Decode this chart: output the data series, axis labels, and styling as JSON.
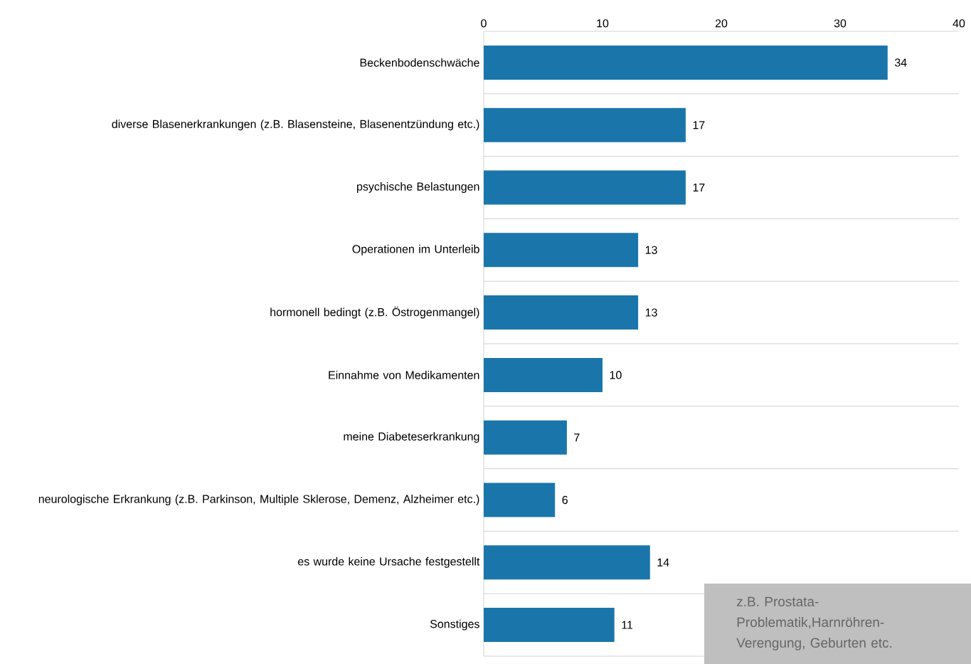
{
  "chart_data": {
    "type": "bar",
    "orientation": "horizontal",
    "categories": [
      "Beckenbodenschwäche",
      "diverse Blasenerkrankungen (z.B. Blasensteine, Blasenentzündung etc.)",
      "psychische Belastungen",
      "Operationen im Unterleib",
      "hormonell bedingt (z.B. Östrogenmangel)",
      "Einnahme von Medikamenten",
      "meine Diabeteserkrankung",
      "neurologische Erkrankung (z.B. Parkinson, Multiple Sklerose, Demenz, Alzheimer etc.)",
      "es wurde keine Ursache festgestellt",
      "Sonstiges"
    ],
    "values": [
      34,
      17,
      17,
      13,
      13,
      10,
      7,
      6,
      14,
      11
    ],
    "color": "#1a76aa",
    "xlim": [
      0,
      40
    ],
    "xticks": [
      0,
      10,
      20,
      30,
      40
    ],
    "grid": "y",
    "data_labels": true,
    "annotations": [
      "z.B. Prostata-Problematik,Harnröhren-Verengung, Geburten etc."
    ]
  }
}
